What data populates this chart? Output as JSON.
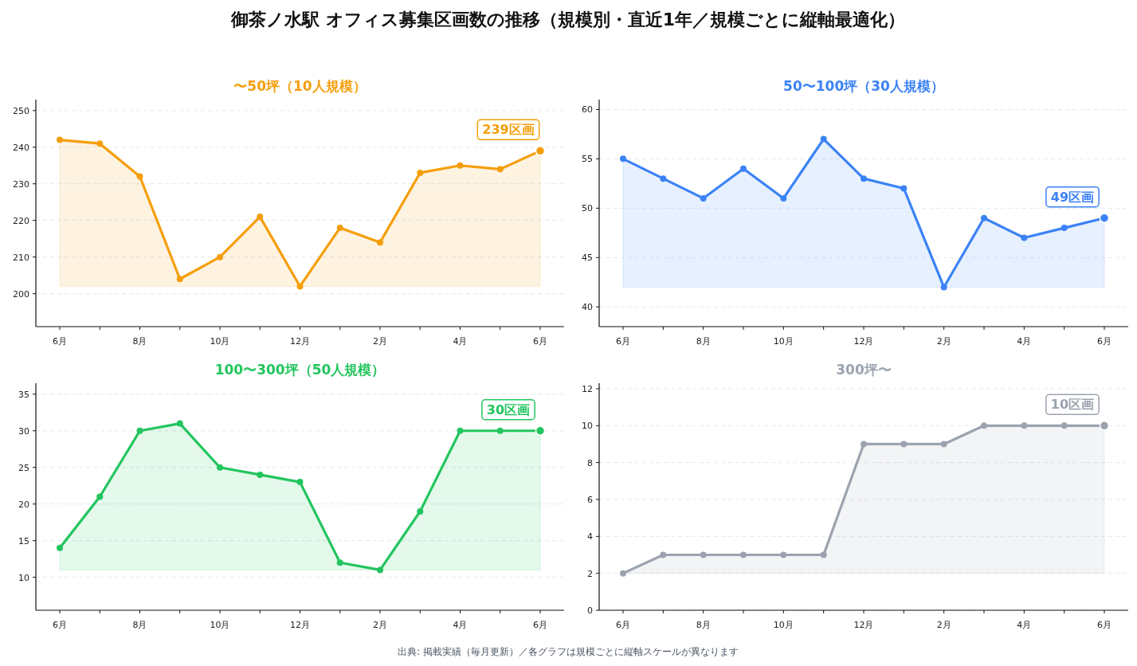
{
  "chart_data": [
    {
      "type": "other",
      "title": "御茶ノ水駅 オフィス募集区画数の推移（規模別・直近1年／規模ごとに縦軸最適化）",
      "annotations": [
        "出典: 掲載実績（毎月更新）／各グラフは規模ごとに縦軸スケールが異なります"
      ]
    },
    {
      "type": "area",
      "title": "〜50坪（10人規模）",
      "categories": [
        "6月",
        null,
        "8月",
        null,
        "10月",
        null,
        "12月",
        null,
        "2月",
        null,
        "4月",
        null,
        "6月"
      ],
      "series": [
        {
          "color": "#f59e0b",
          "values": [
            242,
            241,
            232,
            204,
            210,
            221,
            202,
            218,
            214,
            233,
            235,
            234,
            239
          ]
        }
      ],
      "ylim": [
        191,
        253
      ],
      "yticks": [
        200,
        210,
        220,
        230,
        240,
        250
      ],
      "grid": "y",
      "marker": "circle",
      "annotations": [
        "239区画"
      ]
    },
    {
      "type": "area",
      "title": "50〜100坪（30人規模）",
      "categories": [
        "6月",
        null,
        "8月",
        null,
        "10月",
        null,
        "12月",
        null,
        "2月",
        null,
        "4月",
        null,
        "6月"
      ],
      "series": [
        {
          "color": "#3b82f6",
          "values": [
            55,
            53,
            51,
            54,
            51,
            57,
            53,
            52,
            42,
            49,
            47,
            48,
            49
          ]
        }
      ],
      "ylim": [
        38,
        61
      ],
      "yticks": [
        40,
        45,
        50,
        55,
        60
      ],
      "grid": "y",
      "marker": "circle",
      "annotations": [
        "49区画"
      ]
    },
    {
      "type": "area",
      "title": "100〜300坪（50人規模）",
      "categories": [
        "6月",
        null,
        "8月",
        null,
        "10月",
        null,
        "12月",
        null,
        "2月",
        null,
        "4月",
        null,
        "6月"
      ],
      "series": [
        {
          "color": "#22c55e",
          "values": [
            14,
            21,
            30,
            31,
            25,
            24,
            23,
            12,
            11,
            19,
            30,
            30,
            30
          ]
        }
      ],
      "ylim": [
        5.5,
        36.5
      ],
      "yticks": [
        10,
        15,
        20,
        25,
        30,
        35
      ],
      "grid": "y",
      "marker": "circle",
      "annotations": [
        "30区画"
      ]
    },
    {
      "type": "area",
      "title": "300坪〜",
      "categories": [
        "6月",
        null,
        "8月",
        null,
        "10月",
        null,
        "12月",
        null,
        "2月",
        null,
        "4月",
        null,
        "6月"
      ],
      "series": [
        {
          "color": "#9ca3af",
          "values": [
            2,
            3,
            3,
            3,
            3,
            3,
            9,
            9,
            9,
            10,
            10,
            10,
            10
          ]
        }
      ],
      "ylim": [
        0,
        12.3
      ],
      "yticks": [
        0,
        2,
        4,
        6,
        8,
        10,
        12
      ],
      "grid": "y",
      "marker": "circle",
      "annotations": [
        "10区画"
      ]
    }
  ]
}
